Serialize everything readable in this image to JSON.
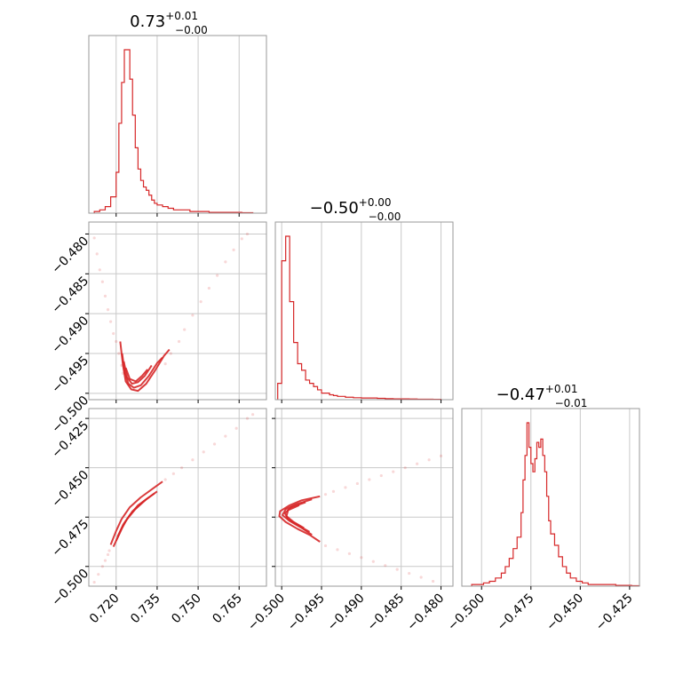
{
  "chart_data": {
    "type": "corner",
    "color": "#d62728",
    "parameters": [
      {
        "title_median": "0.73",
        "title_plus": "+0.01",
        "title_minus": "−0.00",
        "range": [
          0.71,
          0.775
        ],
        "ticks": [
          0.72,
          0.735,
          0.75,
          0.765
        ],
        "tick_labels": [
          "0.720",
          "0.735",
          "0.750",
          "0.765"
        ],
        "hist": {
          "edges": [
            0.712,
            0.714,
            0.716,
            0.718,
            0.72,
            0.721,
            0.722,
            0.723,
            0.724,
            0.725,
            0.726,
            0.727,
            0.728,
            0.729,
            0.73,
            0.731,
            0.732,
            0.733,
            0.734,
            0.735,
            0.737,
            0.739,
            0.741,
            0.744,
            0.747,
            0.75,
            0.754,
            0.758,
            0.762,
            0.766,
            0.77
          ],
          "counts": [
            1,
            2,
            4,
            10,
            25,
            55,
            80,
            100,
            100,
            82,
            60,
            40,
            27,
            20,
            16,
            14,
            11,
            8,
            6,
            5,
            4,
            3,
            2,
            2,
            1,
            1,
            0.5,
            0.5,
            0.5,
            0.3
          ]
        }
      },
      {
        "title_median": "−0.50",
        "title_plus": "+0.00",
        "title_minus": "−0.00",
        "range": [
          -0.5008,
          -0.4785
        ],
        "ticks": [
          -0.5,
          -0.495,
          -0.49,
          -0.485,
          -0.48
        ],
        "tick_labels": [
          "−0.500",
          "−0.495",
          "−0.490",
          "−0.485",
          "−0.480"
        ],
        "hist": {
          "edges": [
            -0.5005,
            -0.5,
            -0.4995,
            -0.499,
            -0.4985,
            -0.498,
            -0.4975,
            -0.497,
            -0.4965,
            -0.496,
            -0.4955,
            -0.495,
            -0.4945,
            -0.494,
            -0.4935,
            -0.493,
            -0.4925,
            -0.492,
            -0.4915,
            -0.491,
            -0.49,
            -0.489,
            -0.488,
            -0.487,
            -0.486,
            -0.485,
            -0.484,
            -0.483,
            -0.482,
            -0.481,
            -0.48
          ],
          "counts": [
            10,
            85,
            100,
            60,
            35,
            22,
            18,
            12,
            10,
            8,
            6,
            4,
            4,
            3,
            2.5,
            2,
            2,
            1.5,
            1.5,
            1.2,
            1,
            1,
            0.8,
            0.6,
            0.5,
            0.5,
            0.4,
            0.3,
            0.3,
            0.2
          ]
        }
      },
      {
        "title_median": "−0.47",
        "title_plus": "+0.01",
        "title_minus": "−0.01",
        "range": [
          -0.51,
          -0.42
        ],
        "ticks": [
          -0.5,
          -0.475,
          -0.45,
          -0.425
        ],
        "tick_labels": [
          "−0.500",
          "−0.475",
          "−0.450",
          "−0.425"
        ],
        "hist": {
          "edges": [
            -0.505,
            -0.502,
            -0.499,
            -0.496,
            -0.493,
            -0.49,
            -0.488,
            -0.486,
            -0.484,
            -0.482,
            -0.48,
            -0.479,
            -0.478,
            -0.477,
            -0.476,
            -0.475,
            -0.474,
            -0.473,
            -0.472,
            -0.471,
            -0.47,
            -0.469,
            -0.468,
            -0.467,
            -0.466,
            -0.465,
            -0.463,
            -0.461,
            -0.459,
            -0.457,
            -0.455,
            -0.452,
            -0.449,
            -0.446,
            -0.443,
            -0.44,
            -0.436,
            -0.432,
            -0.428,
            -0.424,
            -0.42
          ],
          "counts": [
            1,
            1,
            2,
            3,
            5,
            8,
            12,
            17,
            23,
            30,
            45,
            65,
            80,
            100,
            85,
            75,
            70,
            78,
            88,
            85,
            90,
            80,
            70,
            55,
            40,
            32,
            25,
            18,
            12,
            8,
            5,
            3,
            2,
            1,
            1,
            1,
            1,
            0.5,
            0.5,
            0.3
          ]
        }
      }
    ],
    "joints": [
      {
        "x_param": 0,
        "y_param": 1,
        "ylim": [
          -0.5008,
          -0.4785
        ],
        "yticks": [
          -0.48,
          -0.485,
          -0.49,
          -0.495,
          -0.5
        ],
        "ytick_labels": [
          "−0.480",
          "−0.485",
          "−0.490",
          "−0.495",
          "−0.500"
        ],
        "scatter": [
          [
            0.712,
            -0.4805
          ],
          [
            0.713,
            -0.4825
          ],
          [
            0.714,
            -0.4845
          ],
          [
            0.715,
            -0.486
          ],
          [
            0.716,
            -0.4878
          ],
          [
            0.717,
            -0.4895
          ],
          [
            0.718,
            -0.491
          ],
          [
            0.719,
            -0.4925
          ],
          [
            0.72,
            -0.4935
          ],
          [
            0.721,
            -0.495
          ],
          [
            0.722,
            -0.4965
          ],
          [
            0.7225,
            -0.4975
          ],
          [
            0.743,
            -0.4935
          ],
          [
            0.745,
            -0.492
          ],
          [
            0.748,
            -0.4902
          ],
          [
            0.751,
            -0.4885
          ],
          [
            0.754,
            -0.4868
          ],
          [
            0.757,
            -0.4852
          ],
          [
            0.76,
            -0.4835
          ],
          [
            0.763,
            -0.482
          ],
          [
            0.766,
            -0.4806
          ],
          [
            0.768,
            -0.48
          ],
          [
            0.74,
            -0.495
          ],
          [
            0.738,
            -0.4963
          ]
        ],
        "contours": [
          [
            [
              0.7215,
              -0.4935
            ],
            [
              0.7225,
              -0.4965
            ],
            [
              0.7235,
              -0.4985
            ],
            [
              0.7255,
              -0.4995
            ],
            [
              0.728,
              -0.4997
            ],
            [
              0.731,
              -0.4988
            ],
            [
              0.7345,
              -0.497
            ],
            [
              0.7375,
              -0.4953
            ],
            [
              0.7395,
              -0.4945
            ]
          ],
          [
            [
              0.7222,
              -0.495
            ],
            [
              0.7232,
              -0.4975
            ],
            [
              0.7245,
              -0.4988
            ],
            [
              0.7265,
              -0.4993
            ],
            [
              0.729,
              -0.499
            ],
            [
              0.732,
              -0.4978
            ],
            [
              0.735,
              -0.4962
            ],
            [
              0.737,
              -0.4955
            ]
          ],
          [
            [
              0.7228,
              -0.496
            ],
            [
              0.724,
              -0.498
            ],
            [
              0.7258,
              -0.4988
            ],
            [
              0.728,
              -0.4986
            ],
            [
              0.7305,
              -0.4978
            ],
            [
              0.733,
              -0.4965
            ]
          ],
          [
            [
              0.7235,
              -0.4968
            ],
            [
              0.725,
              -0.4982
            ],
            [
              0.7272,
              -0.4985
            ],
            [
              0.7295,
              -0.4978
            ],
            [
              0.7315,
              -0.497
            ]
          ]
        ]
      },
      {
        "x_param": 0,
        "y_param": 2,
        "ylim": [
          -0.51,
          -0.42
        ],
        "yticks": [
          -0.425,
          -0.45,
          -0.475,
          -0.5
        ],
        "ytick_labels": [
          "−0.425",
          "−0.450",
          "−0.475",
          "−0.500"
        ],
        "scatter": [
          [
            0.712,
            -0.508
          ],
          [
            0.7135,
            -0.504
          ],
          [
            0.715,
            -0.5
          ],
          [
            0.716,
            -0.497
          ],
          [
            0.717,
            -0.494
          ],
          [
            0.7175,
            -0.492
          ],
          [
            0.738,
            -0.456
          ],
          [
            0.741,
            -0.453
          ],
          [
            0.744,
            -0.45
          ],
          [
            0.748,
            -0.446
          ],
          [
            0.752,
            -0.442
          ],
          [
            0.756,
            -0.438
          ],
          [
            0.76,
            -0.434
          ],
          [
            0.764,
            -0.43
          ],
          [
            0.768,
            -0.425
          ],
          [
            0.77,
            -0.423
          ]
        ],
        "contours": [
          [
            [
              0.718,
              -0.489
            ],
            [
              0.72,
              -0.482
            ],
            [
              0.722,
              -0.476
            ],
            [
              0.725,
              -0.47
            ],
            [
              0.729,
              -0.465
            ],
            [
              0.733,
              -0.461
            ],
            [
              0.737,
              -0.457
            ]
          ],
          [
            [
              0.719,
              -0.49
            ],
            [
              0.721,
              -0.484
            ],
            [
              0.723,
              -0.478
            ],
            [
              0.726,
              -0.472
            ],
            [
              0.73,
              -0.467
            ],
            [
              0.734,
              -0.463
            ]
          ],
          [
            [
              0.72,
              -0.487
            ],
            [
              0.722,
              -0.481
            ],
            [
              0.724,
              -0.476
            ],
            [
              0.727,
              -0.471
            ],
            [
              0.731,
              -0.466
            ],
            [
              0.735,
              -0.462
            ]
          ],
          [
            [
              0.7205,
              -0.485
            ],
            [
              0.7225,
              -0.479
            ],
            [
              0.725,
              -0.474
            ],
            [
              0.728,
              -0.469
            ],
            [
              0.732,
              -0.465
            ]
          ]
        ]
      },
      {
        "x_param": 1,
        "y_param": 2,
        "ylim": [
          -0.51,
          -0.42
        ],
        "yticks": [],
        "ytick_labels": [],
        "scatter": [
          [
            -0.4945,
            -0.4635
          ],
          [
            -0.4935,
            -0.462
          ],
          [
            -0.492,
            -0.46
          ],
          [
            -0.4905,
            -0.458
          ],
          [
            -0.489,
            -0.456
          ],
          [
            -0.4875,
            -0.454
          ],
          [
            -0.486,
            -0.452
          ],
          [
            -0.4845,
            -0.45
          ],
          [
            -0.483,
            -0.448
          ],
          [
            -0.4815,
            -0.446
          ],
          [
            -0.48,
            -0.444
          ],
          [
            -0.4945,
            -0.4895
          ],
          [
            -0.493,
            -0.4915
          ],
          [
            -0.4915,
            -0.4935
          ],
          [
            -0.49,
            -0.4955
          ],
          [
            -0.4885,
            -0.4975
          ],
          [
            -0.487,
            -0.4995
          ],
          [
            -0.4855,
            -0.5015
          ],
          [
            -0.484,
            -0.5035
          ],
          [
            -0.4825,
            -0.5055
          ],
          [
            -0.481,
            -0.5075
          ]
        ],
        "contours": [
          [
            [
              -0.4952,
              -0.4645
            ],
            [
              -0.4975,
              -0.4665
            ],
            [
              -0.499,
              -0.469
            ],
            [
              -0.5002,
              -0.472
            ],
            [
              -0.5003,
              -0.4745
            ],
            [
              -0.4995,
              -0.4775
            ],
            [
              -0.498,
              -0.481
            ],
            [
              -0.4965,
              -0.484
            ],
            [
              -0.4952,
              -0.4875
            ]
          ],
          [
            [
              -0.4962,
              -0.466
            ],
            [
              -0.4982,
              -0.4685
            ],
            [
              -0.4995,
              -0.471
            ],
            [
              -0.4999,
              -0.474
            ],
            [
              -0.499,
              -0.477
            ],
            [
              -0.4975,
              -0.4805
            ],
            [
              -0.4962,
              -0.484
            ]
          ],
          [
            [
              -0.497,
              -0.4675
            ],
            [
              -0.4988,
              -0.47
            ],
            [
              -0.4996,
              -0.473
            ],
            [
              -0.4992,
              -0.476
            ],
            [
              -0.4978,
              -0.4795
            ],
            [
              -0.4965,
              -0.4825
            ]
          ],
          [
            [
              -0.4978,
              -0.469
            ],
            [
              -0.4992,
              -0.4715
            ],
            [
              -0.4994,
              -0.4745
            ],
            [
              -0.4985,
              -0.4775
            ],
            [
              -0.4972,
              -0.4805
            ]
          ]
        ]
      }
    ]
  }
}
